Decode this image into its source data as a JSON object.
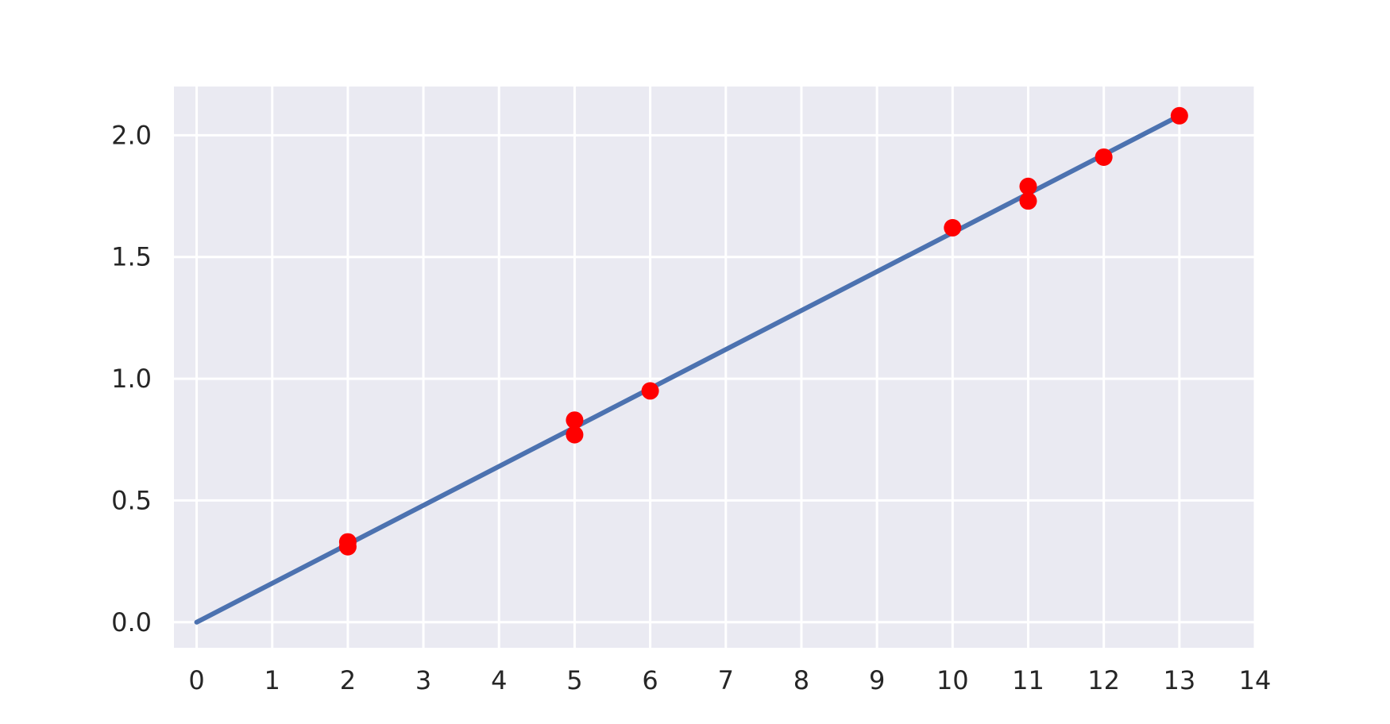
{
  "chart_data": {
    "type": "scatter",
    "title": "",
    "xlabel": "",
    "ylabel": "",
    "xlim": [
      -0.3,
      14.0
    ],
    "ylim": [
      -0.105,
      2.2
    ],
    "x_ticks": [
      0,
      1,
      2,
      3,
      4,
      5,
      6,
      7,
      8,
      9,
      10,
      11,
      12,
      13,
      14
    ],
    "x_tick_labels": [
      "0",
      "1",
      "2",
      "3",
      "4",
      "5",
      "6",
      "7",
      "8",
      "9",
      "10",
      "11",
      "12",
      "13",
      "14"
    ],
    "y_ticks": [
      0.0,
      0.5,
      1.0,
      1.5,
      2.0
    ],
    "y_tick_labels": [
      "0.0",
      "0.5",
      "1.0",
      "1.5",
      "2.0"
    ],
    "grid": true,
    "background_color": "#EAEAF2",
    "series": [
      {
        "kind": "scatter",
        "color": "#FF0000",
        "points": [
          {
            "x": 2,
            "y": 0.33
          },
          {
            "x": 2,
            "y": 0.31
          },
          {
            "x": 5,
            "y": 0.83
          },
          {
            "x": 5,
            "y": 0.77
          },
          {
            "x": 6,
            "y": 0.95
          },
          {
            "x": 10,
            "y": 1.62
          },
          {
            "x": 11,
            "y": 1.79
          },
          {
            "x": 11,
            "y": 1.73
          },
          {
            "x": 12,
            "y": 1.91
          },
          {
            "x": 13,
            "y": 2.08
          }
        ]
      },
      {
        "kind": "line",
        "color": "#4C72B0",
        "points": [
          {
            "x": 0,
            "y": 0.0
          },
          {
            "x": 13,
            "y": 2.08
          }
        ]
      }
    ]
  }
}
